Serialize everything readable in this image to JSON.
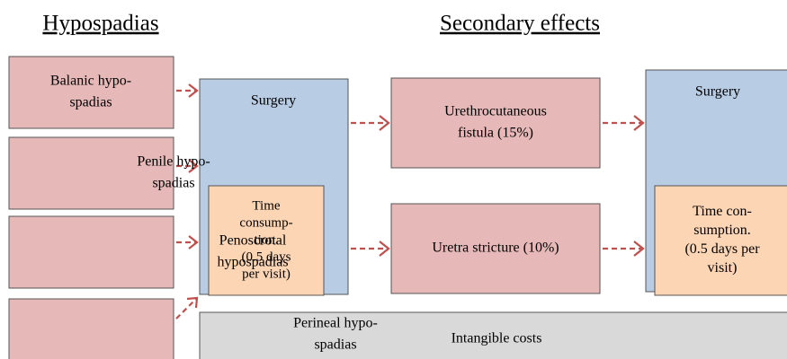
{
  "headers": {
    "left": "Hypospadias",
    "right": "Secondary effects"
  },
  "nodes": [
    {
      "label": [
        "Balanic hypo-",
        "spadias"
      ]
    },
    {
      "label": [
        "Penile hypo-",
        "spadias"
      ]
    },
    {
      "label": [
        "Penoscrotal",
        "hypospadias"
      ]
    },
    {
      "label": [
        "Perineal hypo-",
        "spadias"
      ]
    },
    {
      "label": [
        "Surgery"
      ]
    },
    {
      "label": [
        "Time",
        "consump-",
        "tion.",
        "(0.5 days",
        "per visit)"
      ]
    },
    {
      "label": [
        "Urethrocutaneous",
        "fistula (15%)"
      ]
    },
    {
      "label": [
        "Uretra stricture (10%)"
      ]
    },
    {
      "label": [
        "Surgery"
      ]
    },
    {
      "label": [
        "Time con-",
        "sumption.",
        "(0.5 days per",
        "visit)"
      ]
    },
    {
      "label": [
        "Intangible costs"
      ]
    }
  ]
}
